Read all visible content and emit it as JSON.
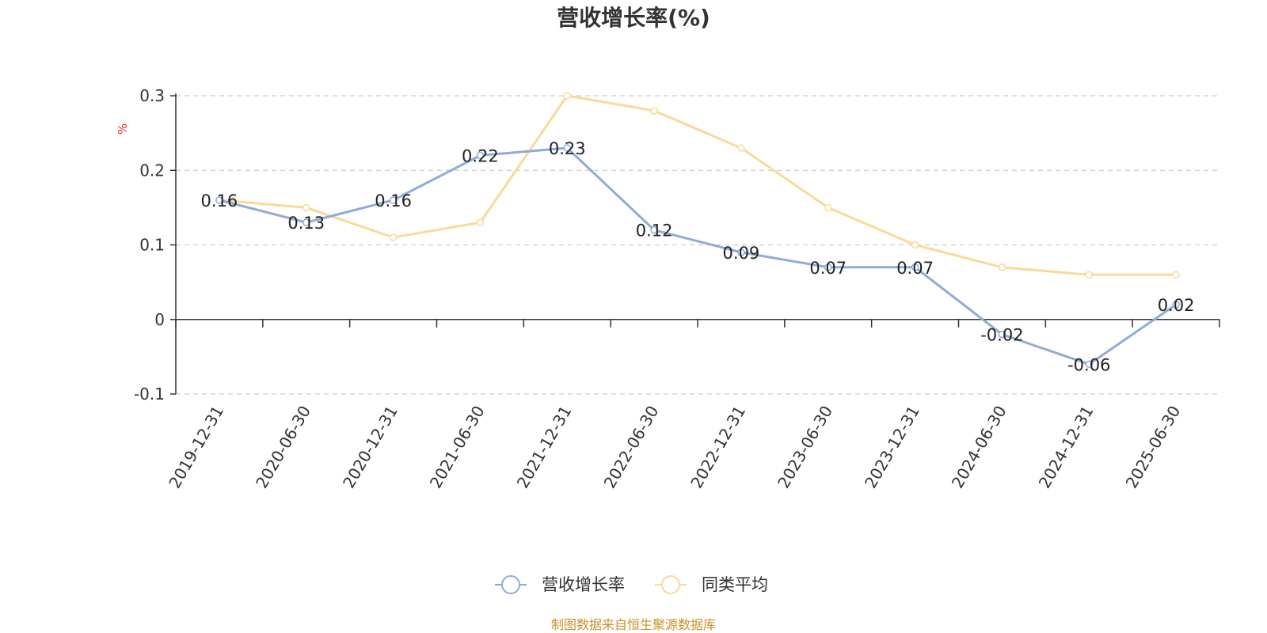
{
  "chart_data": {
    "type": "line",
    "title": "营收增长率(%)",
    "ylabel": "%",
    "xlabel": "",
    "ylim": [
      -0.1,
      0.3
    ],
    "yticks": [
      -0.1,
      0,
      0.1,
      0.2,
      0.3
    ],
    "ytick_labels": [
      "-0.1",
      "0",
      "0.1",
      "0.2",
      "0.3"
    ],
    "grid": true,
    "legend_position": "bottom-center",
    "categories": [
      "2019-12-31",
      "2020-06-30",
      "2020-12-31",
      "2021-06-30",
      "2021-12-31",
      "2022-06-30",
      "2022-12-31",
      "2023-06-30",
      "2023-12-31",
      "2024-06-30",
      "2024-12-31",
      "2025-06-30"
    ],
    "series": [
      {
        "name": "营收增长率",
        "color": "#8fabd8",
        "values": [
          0.16,
          0.13,
          0.16,
          0.22,
          0.23,
          0.12,
          0.09,
          0.07,
          0.07,
          -0.02,
          -0.06,
          0.02
        ],
        "labels": [
          "0.16",
          "0.13",
          "0.16",
          "0.22",
          "0.23",
          "0.12",
          "0.09",
          "0.07",
          "0.07",
          "-0.02",
          "-0.06",
          "0.02"
        ]
      },
      {
        "name": "同类平均",
        "color": "#fbd998",
        "values": [
          0.16,
          0.15,
          0.11,
          0.13,
          0.3,
          0.28,
          0.23,
          0.15,
          0.1,
          0.07,
          0.06,
          0.06
        ]
      }
    ]
  },
  "source_text": "制图数据来自恒生聚源数据库",
  "colors": {
    "axis": "#333333",
    "grid": "#cccccc",
    "ylabel": "#e8242a",
    "source": "#c8922e"
  }
}
